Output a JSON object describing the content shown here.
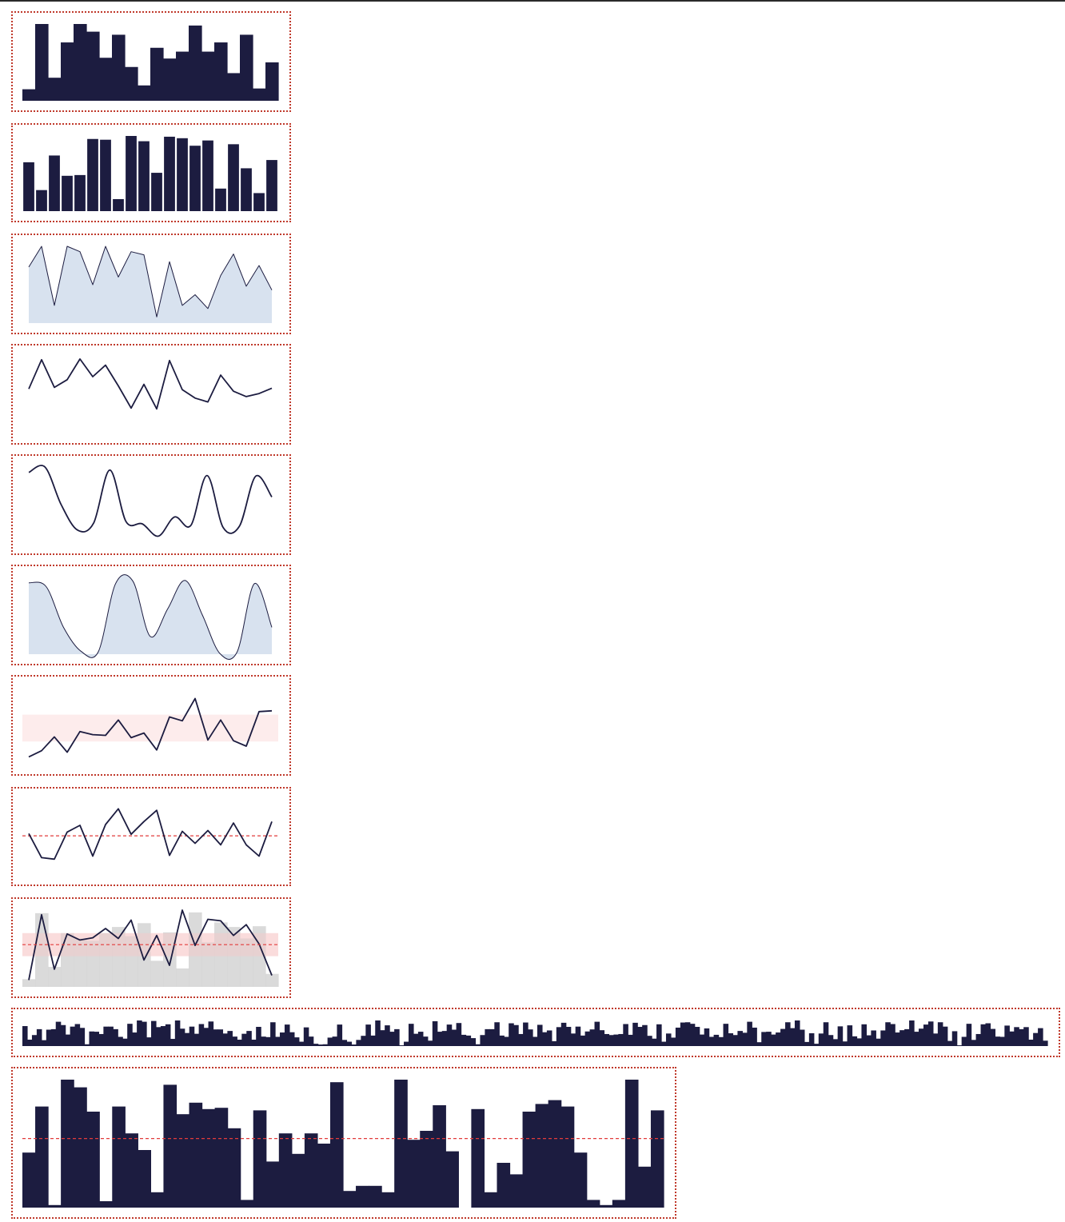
{
  "colors": {
    "ink": "#1c1c40",
    "fill": "#d8e2ef",
    "band": "#fdecec",
    "ref": "#e23b3b",
    "bar_bg": "#d3d3d3",
    "border": "#c0392b"
  },
  "chart_data": [
    {
      "type": "bar",
      "style": "step",
      "ylim": [
        0,
        10
      ],
      "values": [
        1.5,
        10,
        3,
        7.6,
        10,
        9,
        5.6,
        8.6,
        4.4,
        2,
        6.9,
        5.5,
        6.4,
        9.8,
        6.4,
        7.6,
        3.6,
        8.6,
        1.6,
        5
      ]
    },
    {
      "type": "bar",
      "style": "gapped",
      "ylim": [
        0,
        10
      ],
      "values": [
        6.5,
        2.8,
        7.4,
        4.7,
        4.8,
        9.6,
        9.5,
        1.6,
        10,
        9.3,
        5.1,
        9.9,
        9.7,
        8.7,
        9.4,
        3,
        8.9,
        5.7,
        2.4,
        6.8
      ]
    },
    {
      "type": "area",
      "style": "linear",
      "ylim": [
        0,
        10
      ],
      "values": [
        7.3,
        10,
        2.3,
        10,
        9.3,
        5,
        10,
        6,
        9.3,
        8.9,
        0.8,
        8,
        2.3,
        3.7,
        1.9,
        6.2,
        9,
        4.8,
        7.5,
        4.3
      ]
    },
    {
      "type": "line",
      "style": "linear",
      "ylim": [
        0,
        10
      ],
      "values": [
        5.8,
        9.6,
        6,
        7,
        9.7,
        7.4,
        8.9,
        6.2,
        3.3,
        6.4,
        3.2,
        9.5,
        5.7,
        4.6,
        4.1,
        7.6,
        5.5,
        4.8,
        5.2,
        5.9
      ]
    },
    {
      "type": "line",
      "style": "smooth",
      "ylim": [
        0,
        10
      ],
      "values": [
        9.3,
        10.8,
        5.1,
        1.8,
        2.7,
        9.6,
        2.9,
        2.6,
        1,
        3.5,
        2.4,
        8.9,
        2.1,
        2.3,
        8.8,
        6.1
      ]
    },
    {
      "type": "area",
      "style": "smooth",
      "ylim": [
        0,
        10
      ],
      "values": [
        9.3,
        8.8,
        3.5,
        0.4,
        0.3,
        9.2,
        9.5,
        2.3,
        5.9,
        9.6,
        5.1,
        0.1,
        0.3,
        9.2,
        3.5
      ]
    },
    {
      "type": "line",
      "style": "linear",
      "ylim": [
        0,
        10
      ],
      "band": [
        3,
        6.5
      ],
      "values": [
        1,
        1.8,
        3.6,
        1.6,
        4.3,
        3.9,
        3.8,
        5.8,
        3.5,
        4.1,
        1.9,
        6.2,
        5.7,
        8.6,
        3.2,
        5.8,
        3.1,
        2.4,
        6.9,
        7
      ]
    },
    {
      "type": "line",
      "style": "linear",
      "ylim": [
        0,
        10
      ],
      "ref_line": 5.2,
      "values": [
        5.5,
        2.3,
        2.1,
        5.7,
        6.6,
        2.5,
        6.7,
        8.8,
        5.4,
        7.1,
        8.6,
        2.6,
        5.8,
        4.2,
        5.9,
        4,
        6.9,
        4,
        2.5,
        7.1
      ]
    },
    {
      "type": "bar-line",
      "ylim": [
        0,
        10
      ],
      "band": [
        4,
        7
      ],
      "ref_line": 5.5,
      "bars": [
        1,
        9.6,
        2.6,
        7,
        6.3,
        6,
        7,
        7.8,
        6.6,
        8.3,
        3.4,
        7.1,
        2.4,
        9.7,
        5.8,
        8.4,
        7.8,
        6.3,
        7.9,
        1.7
      ],
      "values": [
        0.9,
        9.4,
        2.3,
        6.9,
        6.1,
        6.4,
        7.6,
        6.3,
        8.7,
        3.5,
        6.7,
        2.8,
        10,
        5.4,
        8.8,
        8.6,
        6.7,
        8.1,
        5.6,
        1.5
      ]
    },
    {
      "type": "bar",
      "style": "dense",
      "ylim": [
        0,
        10
      ],
      "values": [
        7.8,
        2.5,
        4.3,
        6.6,
        2.3,
        6.4,
        6.6,
        9.5,
        8.2,
        4.5,
        7.6,
        8.6,
        7.1,
        0.7,
        5.7,
        5.6,
        4.7,
        7.6,
        7.6,
        6.6,
        3.6,
        2.9,
        8.7,
        5.3,
        10,
        9.5,
        3.4,
        9.8,
        7.4,
        7.8,
        8.5,
        2.8,
        10,
        6.8,
        5.1,
        7.6,
        4.8,
        8.6,
        7.1,
        9.6,
        6.5,
        6.5,
        4.9,
        5.9,
        3.7,
        2.5,
        4.8,
        5.9,
        2.5,
        7.5,
        3.7,
        3.5,
        9.3,
        3.6,
        5.3,
        8.4,
        5.4,
        3.4,
        1.7,
        7.3,
        3.7,
        0.9,
        0.6,
        0.7,
        3.3,
        3.7,
        8.4,
        2.4,
        1.7,
        0.6,
        2.4,
        4,
        8.4,
        4.1,
        10,
        6.2,
        8.1,
        5.6,
        6.6,
        0.3,
        1.7,
        8.7,
        4.8,
        5.6,
        3.7,
        2.1,
        9.7,
        5.6,
        5.9,
        8.4,
        6.4,
        9,
        4.4,
        4.1,
        3.1,
        0.7,
        4.3,
        6.6,
        6.6,
        9.3,
        4.1,
        3.6,
        8.9,
        8.2,
        4.7,
        9.2,
        6.5,
        3.6,
        8.3,
        5.4,
        6.1,
        1.9,
        7.4,
        9.1,
        7.5,
        4.9,
        7.6,
        4.1,
        5.7,
        6.5,
        9.5,
        6.2,
        4.7,
        4.3,
        4.5,
        4.7,
        8.6,
        4.4,
        9.1,
        7.5,
        8.2,
        4,
        2.9,
        8.5,
        1.7,
        4.9,
        3.3,
        7.2,
        9.2,
        9.3,
        8.7,
        7.5,
        4.5,
        6.9,
        3.6,
        4.4,
        3.5,
        8.7,
        5,
        4.3,
        5.9,
        5.2,
        9.5,
        7.2,
        1.5,
        5.5,
        5.6,
        4.5,
        5.3,
        6.7,
        9.3,
        7,
        10,
        6.4,
        1.6,
        5,
        0.9,
        4.9,
        9.3,
        4.3,
        2.7,
        7.7,
        1.8,
        8.1,
        3.8,
        3,
        8.5,
        4.2,
        6.1,
        2.9,
        6.1,
        9.3,
        8.6,
        5.3,
        6.2,
        6.6,
        10.1,
        5.6,
        6.8,
        8.4,
        9.6,
        4.9,
        9.3,
        7.6,
        2,
        5.8,
        0.3,
        3.6,
        8.7,
        2.4,
        4.7,
        8.5,
        8.9,
        6.7,
        3.7,
        3.6,
        8,
        5.7,
        7.4,
        6.6,
        7.4,
        2.5,
        5.1,
        7,
        2.1
      ]
    },
    {
      "type": "bar",
      "style": "step",
      "ylim": [
        0,
        10
      ],
      "ref_line": 5.4,
      "values": [
        4.3,
        7.9,
        0.2,
        10,
        9.4,
        7.5,
        0.5,
        7.9,
        5.8,
        4.5,
        1.2,
        9.6,
        7.3,
        8.2,
        7.7,
        7.8,
        6.2,
        0.6,
        7.6,
        3.6,
        5.8,
        4.2,
        5.8,
        5,
        9.8,
        1.3,
        1.7,
        1.7,
        1.2,
        10,
        5.3,
        6,
        8,
        4.4,
        0,
        7.7,
        1.2,
        3.5,
        2.6,
        7.5,
        8.1,
        8.4,
        7.9,
        4.3,
        0.6,
        0.2,
        0.6,
        10,
        3.2,
        7.6
      ]
    }
  ]
}
